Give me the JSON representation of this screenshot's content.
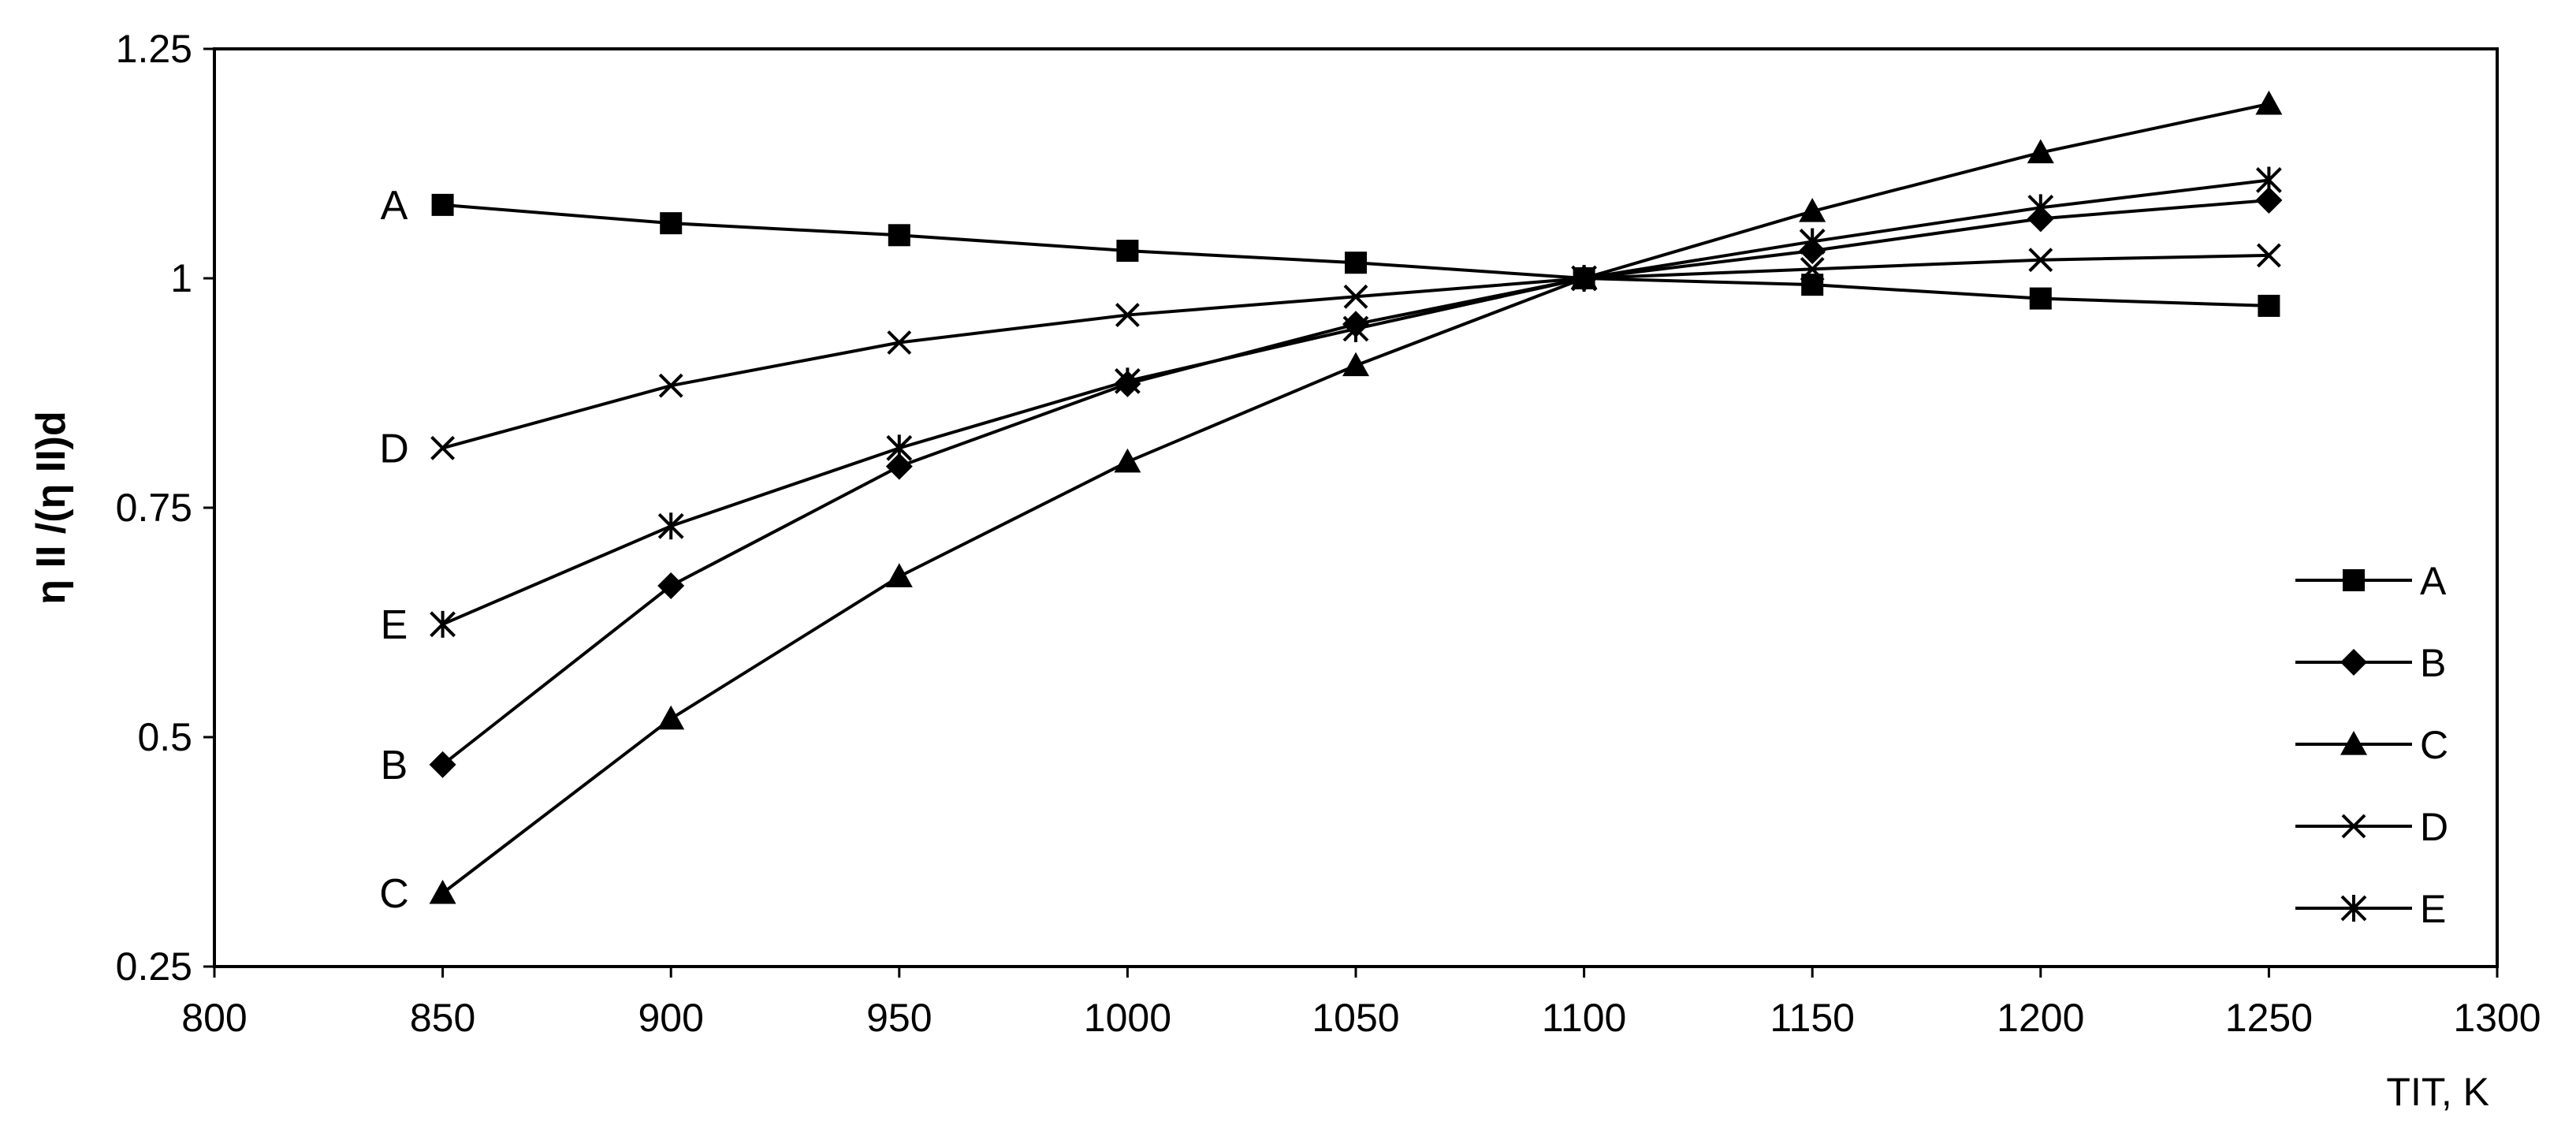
{
  "chart_data": {
    "type": "line",
    "xlabel": "TIT, K",
    "ylabel": "η II /(η II)d",
    "xlim": [
      800,
      1300
    ],
    "ylim": [
      0.25,
      1.25
    ],
    "x_ticks": [
      "800",
      "850",
      "900",
      "950",
      "1000",
      "1050",
      "1100",
      "1150",
      "1200",
      "1250",
      "1300"
    ],
    "y_ticks": [
      "0.25",
      "0.5",
      "0.75",
      "1",
      "1.25"
    ],
    "grid": false,
    "legend_position": "right",
    "x": [
      850,
      900,
      950,
      1000,
      1050,
      1100,
      1150,
      1200,
      1250
    ],
    "series": [
      {
        "name": "A",
        "marker": "square",
        "values": [
          1.08,
          1.06,
          1.047,
          1.03,
          1.017,
          1.0,
          0.993,
          0.978,
          0.97
        ]
      },
      {
        "name": "B",
        "marker": "diamond",
        "values": [
          0.47,
          0.665,
          0.795,
          0.885,
          0.95,
          1.0,
          1.03,
          1.065,
          1.085
        ]
      },
      {
        "name": "C",
        "marker": "triangle",
        "values": [
          0.33,
          0.52,
          0.675,
          0.8,
          0.905,
          1.0,
          1.073,
          1.137,
          1.19
        ]
      },
      {
        "name": "D",
        "marker": "x",
        "values": [
          0.815,
          0.883,
          0.93,
          0.96,
          0.98,
          1.0,
          1.01,
          1.02,
          1.025
        ]
      },
      {
        "name": "E",
        "marker": "asterisk",
        "values": [
          0.623,
          0.73,
          0.815,
          0.888,
          0.945,
          1.0,
          1.04,
          1.077,
          1.107
        ]
      }
    ],
    "curve_labels": [
      {
        "series": "A",
        "text": "A"
      },
      {
        "series": "D",
        "text": "D"
      },
      {
        "series": "E",
        "text": "E"
      },
      {
        "series": "B",
        "text": "B"
      },
      {
        "series": "C",
        "text": "C"
      }
    ]
  }
}
